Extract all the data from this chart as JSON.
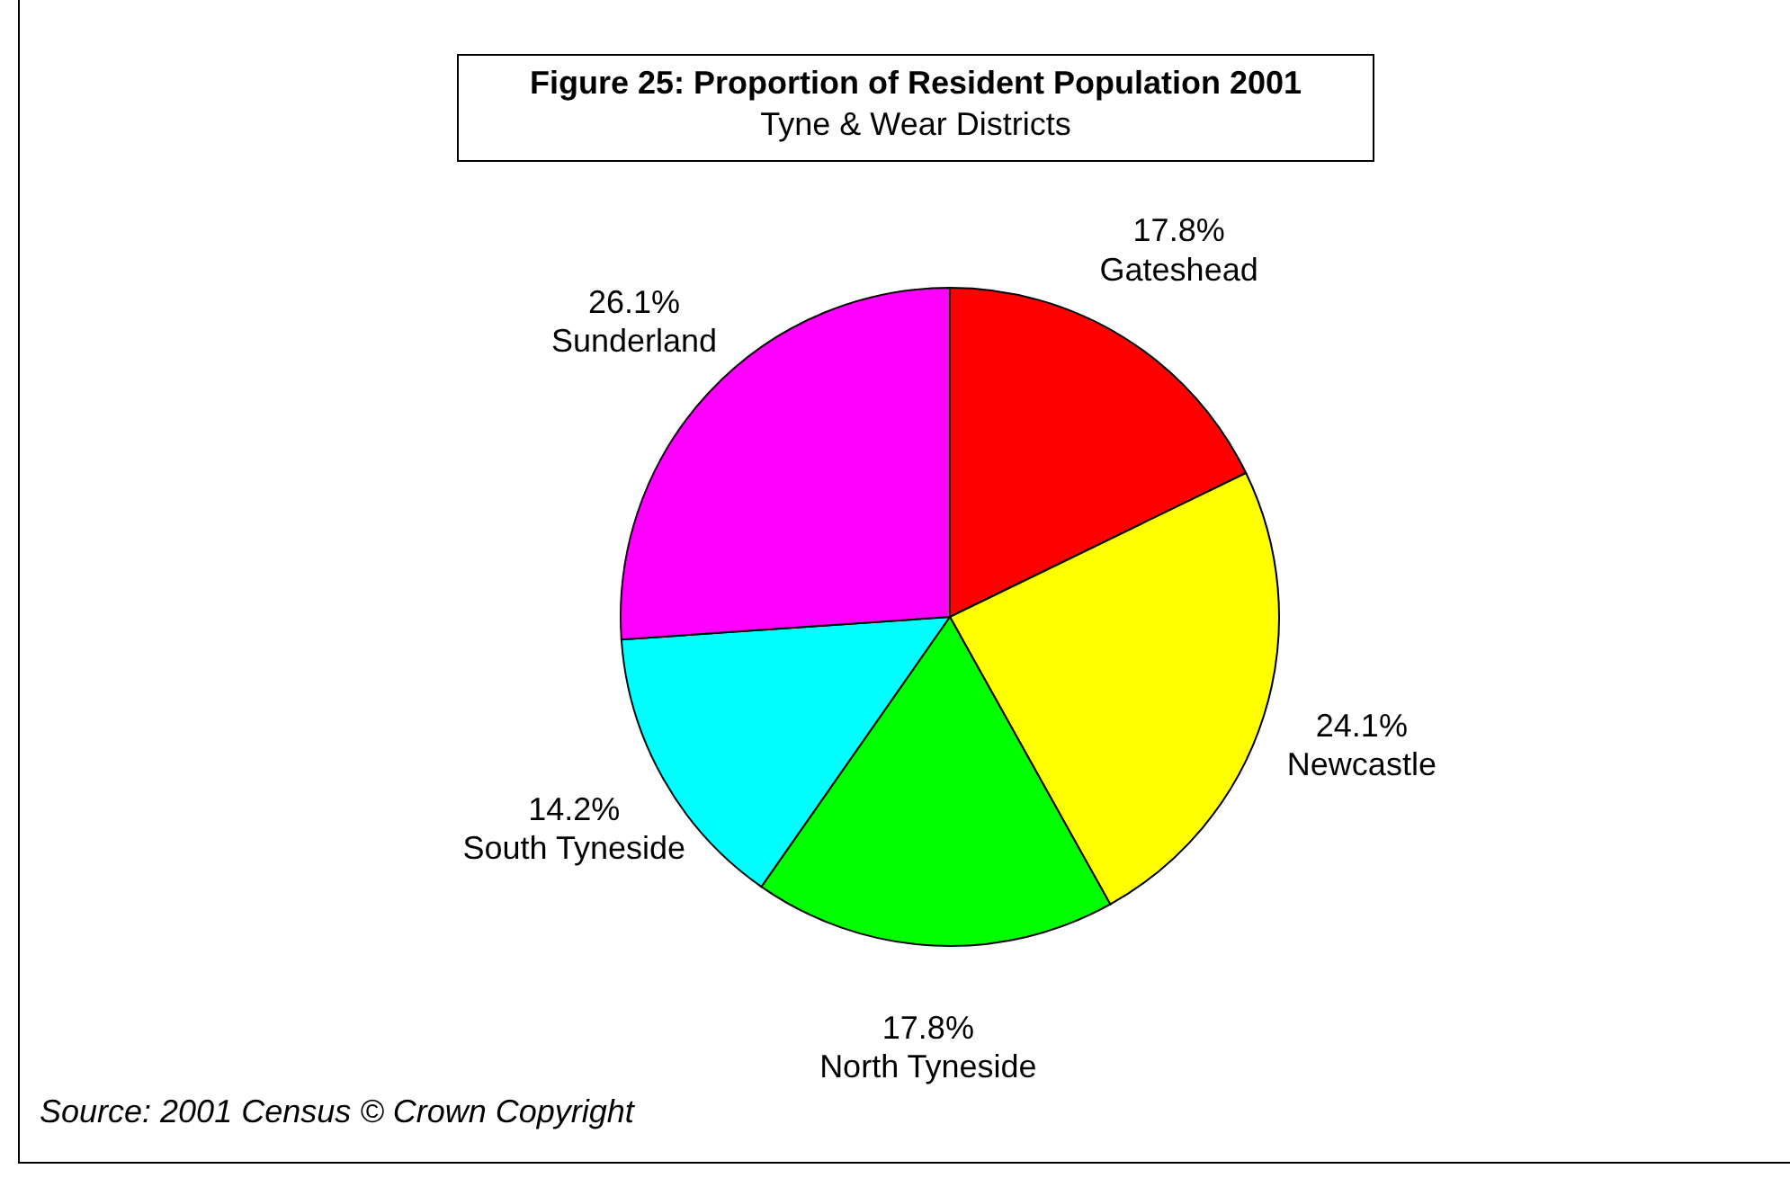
{
  "chart_data": {
    "type": "pie",
    "title": "Figure 25: Proportion of Resident Population 2001",
    "subtitle": "Tyne & Wear Districts",
    "categories": [
      "Gateshead",
      "Newcastle",
      "North Tyneside",
      "South Tyneside",
      "Sunderland"
    ],
    "values": [
      17.8,
      24.1,
      17.8,
      14.2,
      26.1
    ],
    "value_labels": [
      "17.8%",
      "24.1%",
      "17.8%",
      "14.2%",
      "26.1%"
    ],
    "colors": [
      "#ff0000",
      "#ffff00",
      "#00ff00",
      "#00ffff",
      "#ff00ff"
    ],
    "annotations": [
      "Source: 2001 Census © Crown Copyright"
    ]
  }
}
